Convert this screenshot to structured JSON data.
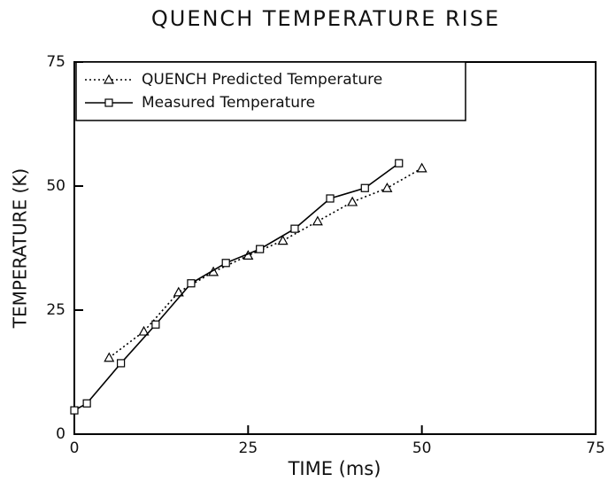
{
  "chart_data": {
    "type": "line",
    "title": "QUENCH TEMPERATURE RISE",
    "xlabel": "TIME (ms)",
    "ylabel": "TEMPERATURE (K)",
    "xlim": [
      0,
      75
    ],
    "xticks": [
      0,
      25,
      50,
      75
    ],
    "ylim": [
      0,
      75
    ],
    "yticks": [
      0,
      25,
      50,
      75
    ],
    "legend": "upper left",
    "series": [
      {
        "name": "QUENCH Predicted Temperature",
        "color": "#000000",
        "marker": "triangle",
        "linestyle": "dotted",
        "x": [
          5,
          10,
          15,
          20,
          25,
          30,
          35,
          40,
          45,
          50
        ],
        "values": [
          15.4,
          20.7,
          28.6,
          32.7,
          36,
          39,
          42.9,
          46.8,
          49.6,
          53.6
        ]
      },
      {
        "name": "Measured Temperature",
        "color": "#000000",
        "marker": "square",
        "linestyle": "solid",
        "x": [
          0,
          1.8,
          6.7,
          11.7,
          16.8,
          21.8,
          26.7,
          31.7,
          36.8,
          41.8,
          46.7
        ],
        "values": [
          4.8,
          6.2,
          14.3,
          22.1,
          30.4,
          34.5,
          37.3,
          41.4,
          47.5,
          49.6,
          54.6
        ]
      }
    ]
  }
}
